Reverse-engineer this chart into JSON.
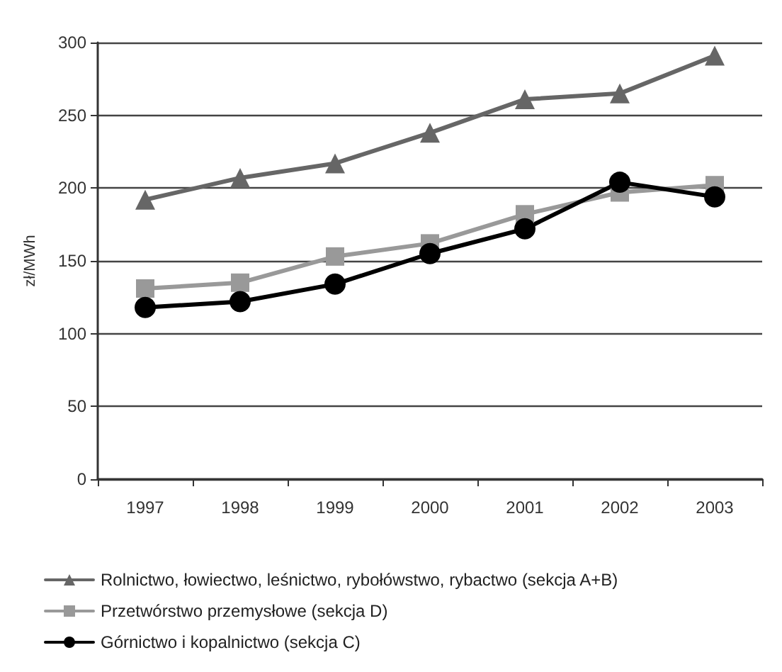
{
  "chart_data": {
    "type": "line",
    "ylabel": "zł/MWh",
    "categories": [
      "1997",
      "1998",
      "1999",
      "2000",
      "2001",
      "2002",
      "2003"
    ],
    "series": [
      {
        "name": "Rolnictwo, łowiectwo, leśnictwo, rybołówstwo, rybactwo (sekcja A+B)",
        "color": "#666666",
        "marker": "triangle",
        "values": [
          192,
          207,
          217,
          238,
          261,
          265,
          291
        ]
      },
      {
        "name": "Przetwórstwo przemysłowe (sekcja D)",
        "color": "#999999",
        "marker": "square",
        "values": [
          131,
          135,
          153,
          162,
          182,
          197,
          202
        ]
      },
      {
        "name": "Górnictwo i kopalnictwo (sekcja C)",
        "color": "#000000",
        "marker": "circle",
        "values": [
          118,
          122,
          134,
          155,
          172,
          204,
          194
        ]
      }
    ],
    "ylim": [
      0,
      300
    ],
    "yticks": [
      0,
      50,
      100,
      150,
      200,
      250,
      300
    ],
    "grid": "y",
    "legend": "bottom left",
    "line_style": "solid"
  }
}
